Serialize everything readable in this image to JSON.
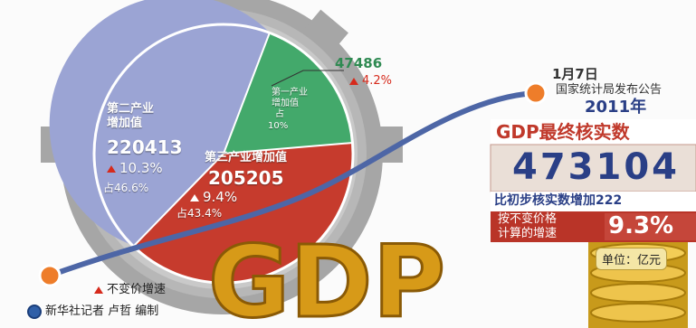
{
  "pie": {
    "secondary": {
      "name_line1": "第二产业",
      "name_line2": "增加值",
      "value": "220413",
      "growth": "10.3%",
      "share": "占46.6%",
      "color": "#9aa3d2"
    },
    "tertiary": {
      "name": "第三产业增加值",
      "value": "205205",
      "growth": "9.4%",
      "share": "占43.4%",
      "color": "#c83a2c"
    },
    "primary": {
      "name_line1": "第一产业",
      "name_line2": "增加值",
      "share": "占",
      "share_pct": "10%",
      "value": "47486",
      "growth": "4.2%",
      "color": "#3fa86a"
    }
  },
  "announcement": {
    "date": "1月7日",
    "source": "国家统计局发布公告",
    "year": "2011年"
  },
  "gdp_box": {
    "title": "GDP最终核实数",
    "value": "473104",
    "increase_text": "比初步核实数增加222",
    "rate_label_line1": "按不变价格",
    "rate_label_line2": "计算的增速",
    "rate_value": "9.3%"
  },
  "unit_label": "单位：亿元",
  "legend": {
    "label": "不变价增速"
  },
  "logo_text": "GDP",
  "credit": "新华社记者 卢哲 编制",
  "colors": {
    "gear": "#a9a9a9",
    "curve": "#4f6aa8",
    "orange_dot": "#ee7d2a",
    "gdp_gold": "#e0a81b",
    "panel_dark": "#b93428",
    "panel_light": "#eadfd7"
  }
}
